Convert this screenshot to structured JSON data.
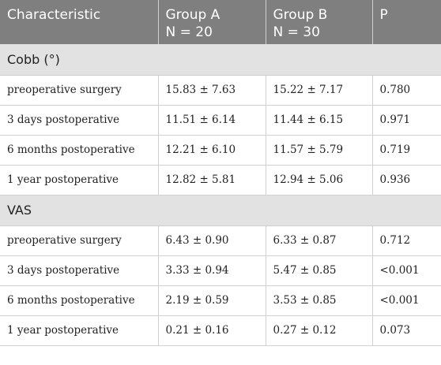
{
  "header": {
    "characteristic": "Characteristic",
    "group_a_name": "Group A",
    "group_a_n": "N = 20",
    "group_b_name": "Group B",
    "group_b_n": "N = 30",
    "p": "P"
  },
  "sections": [
    {
      "title": "Cobb (°)",
      "rows": [
        {
          "label": "preoperative surgery",
          "a": "15.83 ± 7.63",
          "b": "15.22 ± 7.17",
          "p": "0.780"
        },
        {
          "label": "3 days postoperative",
          "a": "11.51 ± 6.14",
          "b": "11.44 ± 6.15",
          "p": "0.971"
        },
        {
          "label": "6 months postoperative",
          "a": "12.21 ± 6.10",
          "b": "11.57 ± 5.79",
          "p": "0.719"
        },
        {
          "label": "1 year postoperative",
          "a": "12.82 ± 5.81",
          "b": "12.94 ± 5.06",
          "p": "0.936"
        }
      ]
    },
    {
      "title": "VAS",
      "rows": [
        {
          "label": "preoperative surgery",
          "a": "6.43 ± 0.90",
          "b": "6.33 ± 0.87",
          "p": "0.712"
        },
        {
          "label": "3 days postoperative",
          "a": "3.33 ± 0.94",
          "b": "5.47 ± 0.85",
          "p": "<0.001"
        },
        {
          "label": "6 months postoperative",
          "a": "2.19 ± 0.59",
          "b": "3.53 ± 0.85",
          "p": "<0.001"
        },
        {
          "label": "1 year postoperative",
          "a": "0.21 ± 0.16",
          "b": "0.27 ± 0.12",
          "p": "0.073"
        }
      ]
    }
  ]
}
